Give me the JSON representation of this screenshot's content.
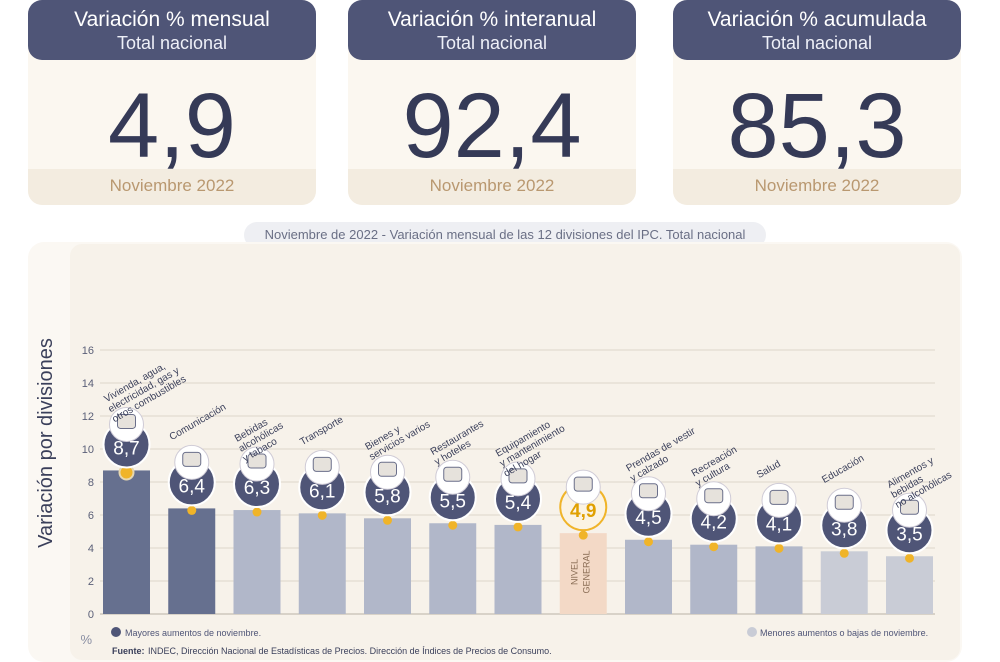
{
  "cards": [
    {
      "title": "Variación % mensual",
      "subtitle": "Total nacional",
      "value": "4,9",
      "period": "Noviembre 2022"
    },
    {
      "title": "Variación % interanual",
      "subtitle": "Total nacional",
      "value": "92,4",
      "period": "Noviembre 2022"
    },
    {
      "title": "Variación % acumulada",
      "subtitle": "Total nacional",
      "value": "85,3",
      "period": "Noviembre 2022"
    }
  ],
  "caption": {
    "date": "Noviembre de 2022",
    "text": " - Variación mensual de las 12 divisiones del IPC. Total nacional"
  },
  "chart_data": {
    "type": "bar",
    "ylabel": "Variación por divisiones",
    "unit": "%",
    "ylim": [
      0,
      16
    ],
    "yticks": [
      0,
      2,
      4,
      6,
      8,
      10,
      12,
      14,
      16
    ],
    "grid": true,
    "categories": [
      [
        "Vivienda, agua,",
        "electricidad, gas y",
        "otros combustibles"
      ],
      [
        "Comunicación"
      ],
      [
        "Bebidas",
        "alcohólicas",
        "y tabaco"
      ],
      [
        "Transporte"
      ],
      [
        "Bienes y",
        "servicios varios"
      ],
      [
        "Restaurantes",
        "y hoteles"
      ],
      [
        "Equipamiento",
        "y mantenimiento",
        "del hogar"
      ],
      [
        "NIVEL",
        "GENERAL"
      ],
      [
        "Prendas de vestir",
        "y calzado"
      ],
      [
        "Recreación",
        "y cultura"
      ],
      [
        "Salud"
      ],
      [
        "Educación"
      ],
      [
        "Alimentos y",
        "bebidas",
        "no alcohólicas"
      ]
    ],
    "values": [
      8.7,
      6.4,
      6.3,
      6.1,
      5.8,
      5.5,
      5.4,
      4.9,
      4.5,
      4.2,
      4.1,
      3.8,
      3.5
    ],
    "value_labels": [
      "8,7",
      "6,4",
      "6,3",
      "6,1",
      "5,8",
      "5,5",
      "5,4",
      "4,9",
      "4,5",
      "4,2",
      "4,1",
      "3,8",
      "3,5"
    ],
    "icons": [
      "house-icon",
      "phone-icon",
      "bottles-icon",
      "car-icon",
      "scissors-icon",
      "cutlery-icon",
      "washer-icon",
      "basket-icon",
      "shirt-icon",
      "umbrella-icon",
      "medkit-icon",
      "book-icon",
      "food-icon"
    ],
    "colors": [
      "#66708f",
      "#66708f",
      "#b1b7c9",
      "#b1b7c9",
      "#b1b7c9",
      "#b1b7c9",
      "#b1b7c9",
      "#f3d9c6",
      "#b1b7c9",
      "#b1b7c9",
      "#b1b7c9",
      "#c9ccd6",
      "#c9ccd6"
    ],
    "legend": [
      {
        "label": "Mayores aumentos de noviembre.",
        "color": "#4f5577"
      },
      {
        "label": "Menores aumentos o bajas de noviembre.",
        "color": "#c9ccd6"
      }
    ],
    "legend_placement": "bottom",
    "source_label": "Fuente:",
    "source_text": " INDEC, Dirección Nacional de Estadísticas de Precios. Dirección de Índices de Precios de Consumo."
  },
  "colors": {
    "header": "#4f5577",
    "value": "#353a57",
    "accent": "#f0b429",
    "period": "#b99870"
  }
}
